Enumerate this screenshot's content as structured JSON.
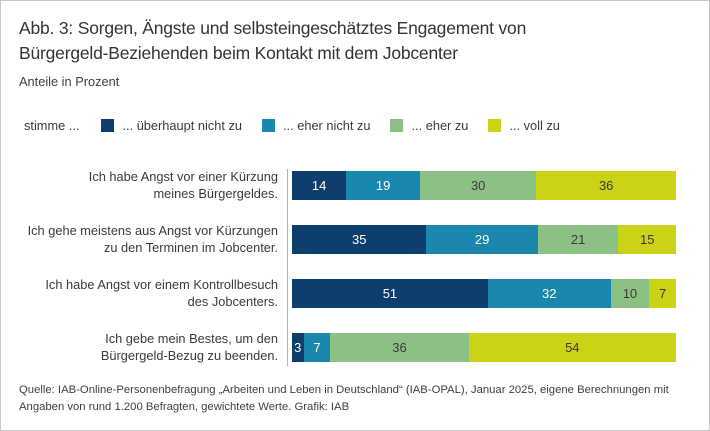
{
  "header": {
    "title_line1": "Abb. 3: Sorgen, Ängste und selbsteingeschätztes Engagement von",
    "title_line2": "Bürgergeld-Beziehenden beim Kontakt mit dem Jobcenter",
    "subtitle": "Anteile in Prozent"
  },
  "legend": {
    "prefix": "stimme ...",
    "position": "top"
  },
  "chart_data": {
    "type": "bar",
    "orientation": "horizontal",
    "stacked": true,
    "unit": "percent",
    "title": "Abb. 3: Sorgen, Ängste und selbsteingeschätztes Engagement von Bürgergeld-Beziehenden beim Kontakt mit dem Jobcenter",
    "subtitle": "Anteile in Prozent",
    "xlim": [
      0,
      100
    ],
    "grid": false,
    "legend_position": "top",
    "axis_line_color": "#b4b4b4",
    "categories": [
      "Ich habe Angst vor einer Kürzung meines Bürgergeldes.",
      "Ich gehe meistens aus Angst vor Kürzungen zu den Terminen im Jobcenter.",
      "Ich habe Angst vor einem Kontrollbesuch des Jobcenters.",
      "Ich gebe mein Bestes, um den Bürgergeld-Bezug zu beenden."
    ],
    "category_lines": [
      [
        "Ich habe Angst vor einer Kürzung",
        "meines Bürgergeldes."
      ],
      [
        "Ich gehe meistens aus Angst vor Kürzungen",
        "zu den Terminen im Jobcenter."
      ],
      [
        "Ich habe Angst vor einem Kontrollbesuch",
        "des Jobcenters."
      ],
      [
        "Ich gebe mein Bestes, um den",
        "Bürgergeld-Bezug zu beenden."
      ]
    ],
    "series": [
      {
        "name": "... überhaupt nicht zu",
        "color": "#0d3e6e",
        "text_color": "#ffffff",
        "values": [
          14,
          35,
          51,
          3
        ]
      },
      {
        "name": "... eher nicht zu",
        "color": "#1987ae",
        "text_color": "#ffffff",
        "values": [
          19,
          29,
          32,
          7
        ]
      },
      {
        "name": "... eher zu",
        "color": "#8cc184",
        "text_color": "#3a3a3a",
        "values": [
          30,
          21,
          10,
          36
        ]
      },
      {
        "name": "... voll zu",
        "color": "#cbd317",
        "text_color": "#3a3a3a",
        "values": [
          36,
          15,
          7,
          54
        ]
      }
    ]
  },
  "footer": {
    "source_line1": "Quelle: IAB-Online-Personenbefragung „Arbeiten und Leben in Deutschland“ (IAB-OPAL), Januar 2025, eigene Berechnungen mit",
    "source_line2": "Angaben von rund 1.200 Befragten, gewichtete Werte. Grafik: IAB"
  }
}
